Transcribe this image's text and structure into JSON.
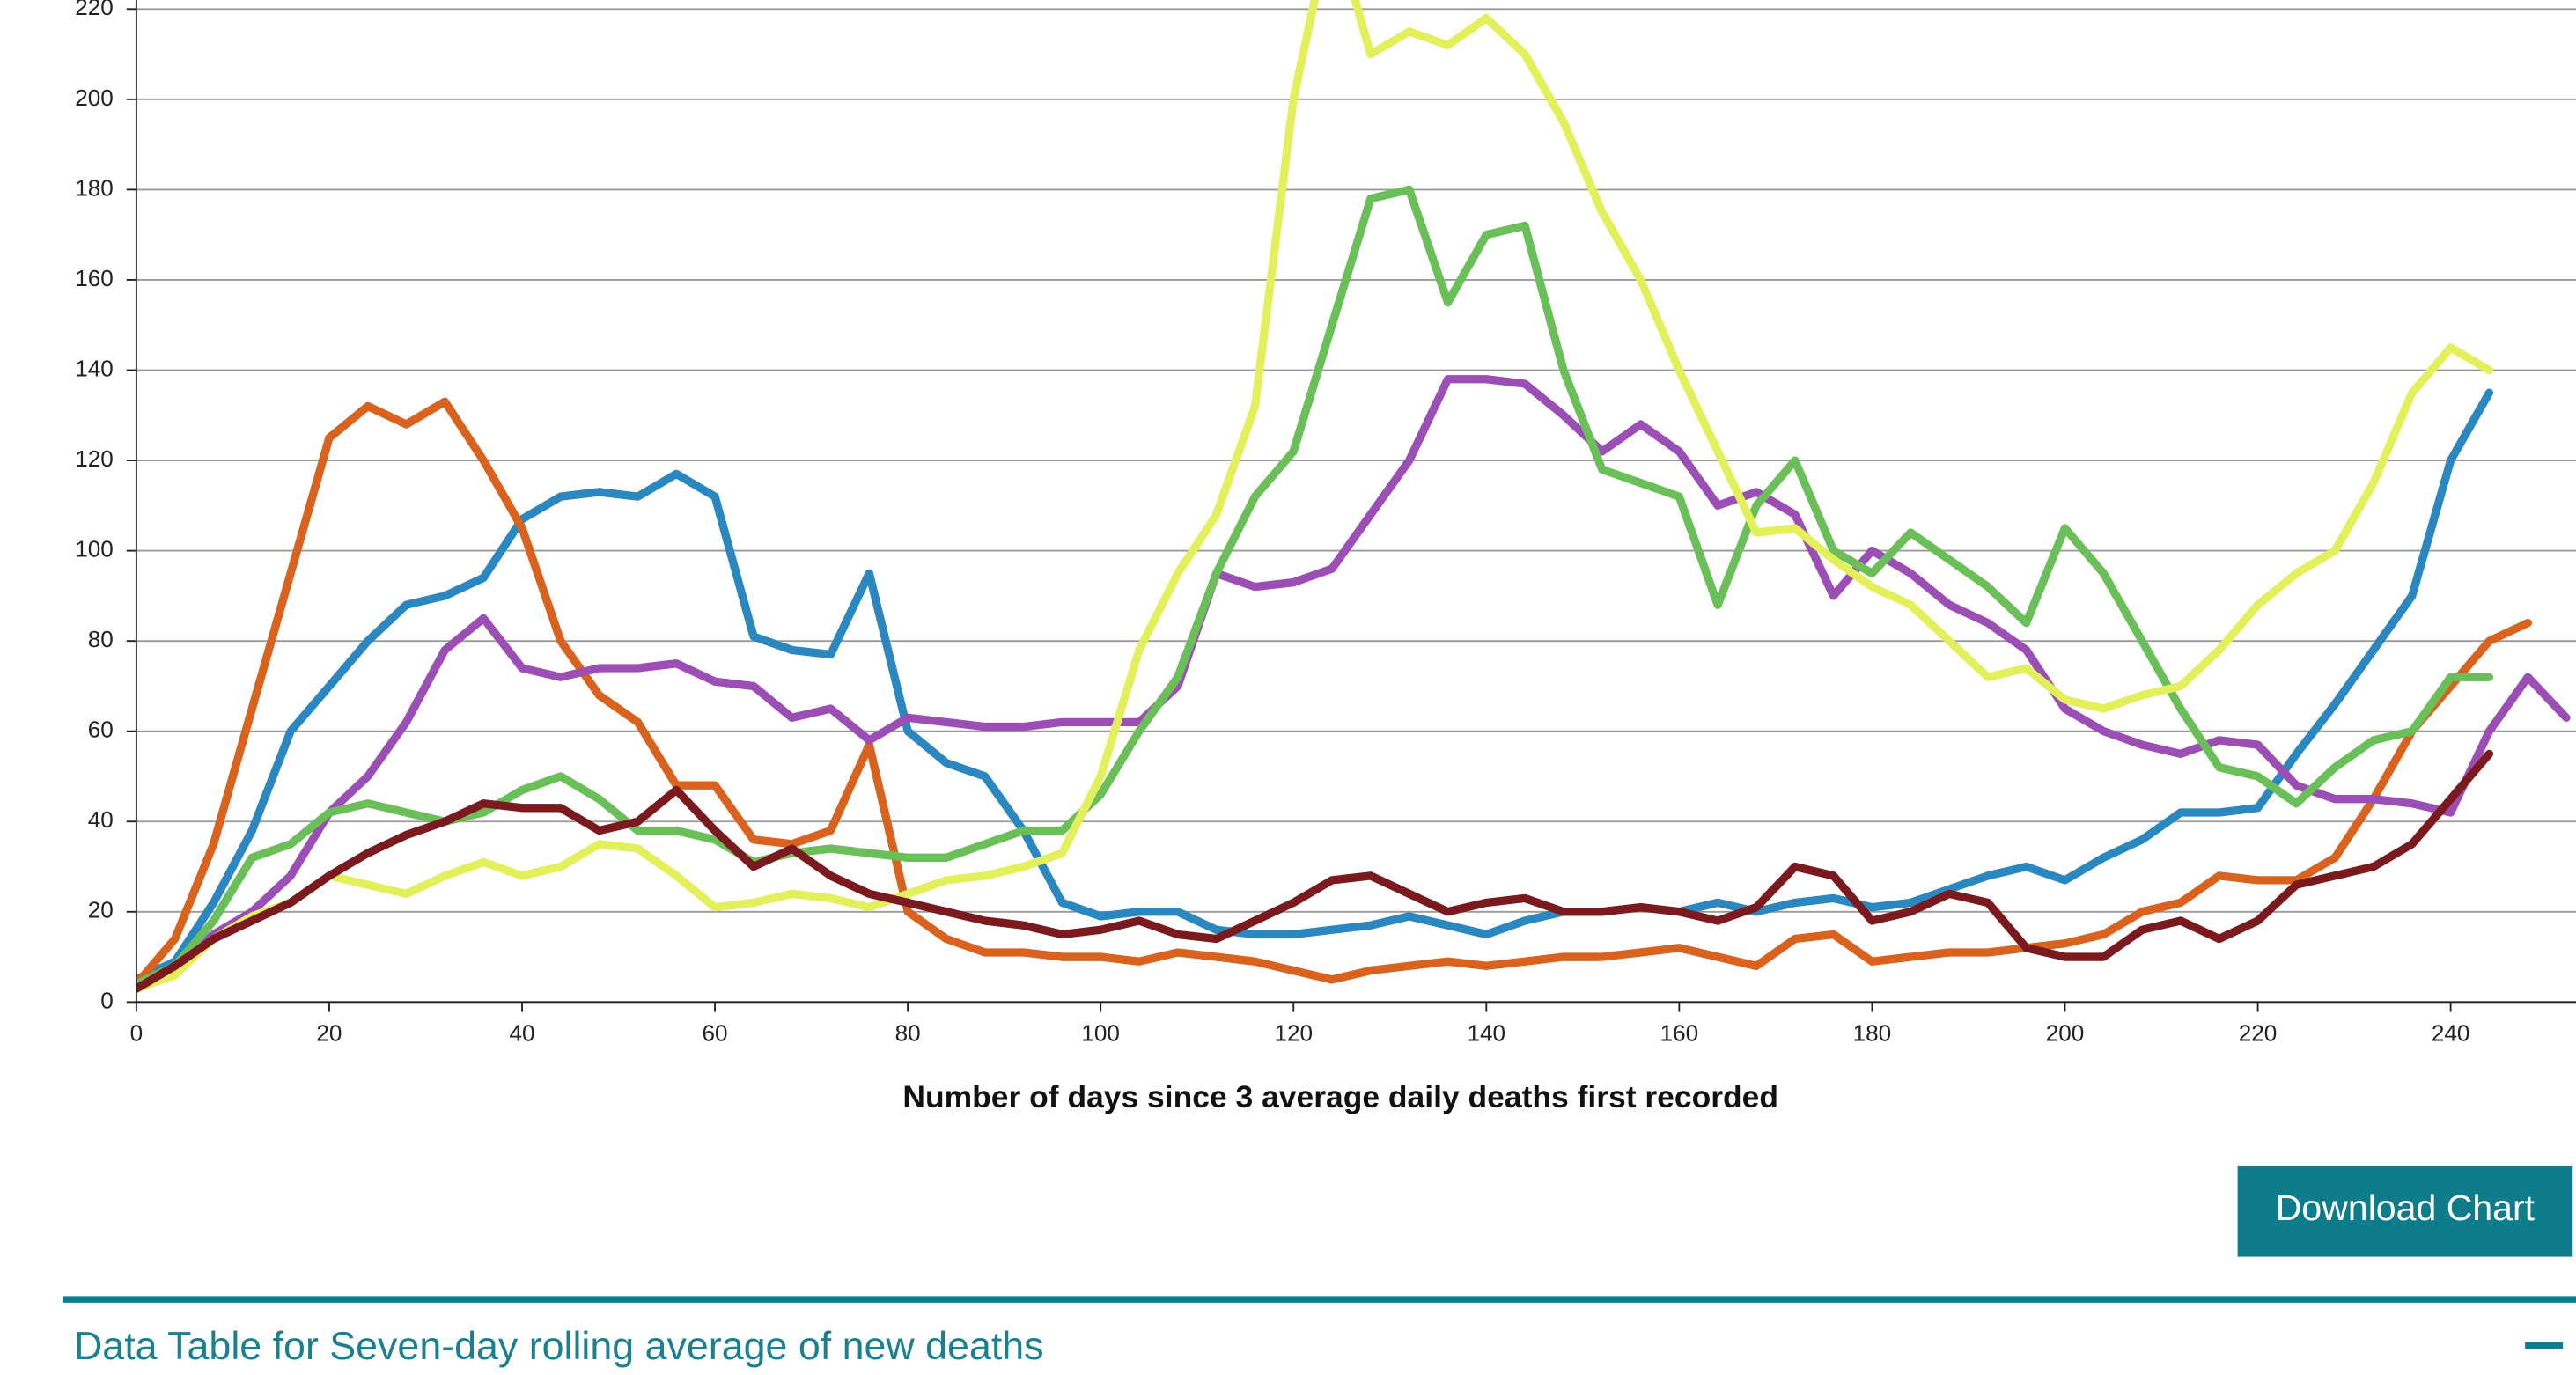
{
  "chart_data": {
    "type": "line",
    "x_label": "Number of days since 3 average daily deaths first recorded",
    "x": [
      0,
      4,
      8,
      12,
      16,
      20,
      24,
      28,
      32,
      36,
      40,
      44,
      48,
      52,
      56,
      60,
      64,
      68,
      72,
      76,
      80,
      84,
      88,
      92,
      96,
      100,
      104,
      108,
      112,
      116,
      120,
      124,
      128,
      132,
      136,
      140,
      144,
      148,
      152,
      156,
      160,
      164,
      168,
      172,
      176,
      180,
      184,
      188,
      192,
      196,
      200,
      204,
      208,
      212,
      216,
      220,
      224,
      228,
      232,
      236,
      240,
      244,
      248,
      252
    ],
    "xlim": [
      0,
      253
    ],
    "xticks": [
      0,
      20,
      40,
      60,
      80,
      100,
      120,
      140,
      160,
      180,
      200,
      220,
      240
    ],
    "ylim": [
      0,
      222
    ],
    "yticks": [
      0,
      20,
      40,
      60,
      80,
      100,
      120,
      140,
      160,
      180,
      200,
      220
    ],
    "grid": true,
    "series": [
      {
        "color": "#2a87c0",
        "values": [
          5,
          9,
          22,
          38,
          60,
          70,
          80,
          88,
          90,
          94,
          107,
          112,
          113,
          112,
          117,
          112,
          81,
          78,
          77,
          95,
          60,
          53,
          50,
          38,
          22,
          19,
          20,
          20,
          16,
          15,
          15,
          16,
          17,
          19,
          17,
          15,
          18,
          20,
          20,
          21,
          20,
          22,
          20,
          22,
          23,
          21,
          22,
          25,
          28,
          30,
          27,
          32,
          36,
          42,
          42,
          43,
          55,
          66,
          78,
          90,
          120,
          135,
          null,
          null
        ]
      },
      {
        "color": "#d9621e",
        "values": [
          4,
          14,
          35,
          65,
          95,
          125,
          132,
          128,
          133,
          120,
          105,
          80,
          68,
          62,
          48,
          48,
          36,
          35,
          38,
          57,
          20,
          14,
          11,
          11,
          10,
          10,
          9,
          11,
          10,
          9,
          7,
          5,
          7,
          8,
          9,
          8,
          9,
          10,
          10,
          11,
          12,
          10,
          8,
          14,
          15,
          9,
          10,
          11,
          11,
          12,
          13,
          15,
          20,
          22,
          28,
          27,
          27,
          32,
          45,
          60,
          70,
          80,
          84,
          null
        ]
      },
      {
        "color": "#9b4fb5",
        "values": [
          4,
          8,
          15,
          20,
          28,
          42,
          50,
          62,
          78,
          85,
          74,
          72,
          74,
          74,
          75,
          71,
          70,
          63,
          65,
          58,
          63,
          62,
          61,
          61,
          62,
          62,
          62,
          70,
          95,
          92,
          93,
          96,
          108,
          120,
          138,
          138,
          137,
          130,
          122,
          128,
          122,
          110,
          113,
          108,
          90,
          100,
          95,
          88,
          84,
          78,
          65,
          60,
          57,
          55,
          58,
          57,
          48,
          45,
          45,
          44,
          42,
          60,
          72,
          63
        ]
      },
      {
        "color": "#6bbf59",
        "values": [
          4,
          8,
          18,
          32,
          35,
          42,
          44,
          42,
          40,
          42,
          47,
          50,
          45,
          38,
          38,
          36,
          31,
          33,
          34,
          33,
          32,
          32,
          35,
          38,
          38,
          46,
          60,
          72,
          95,
          112,
          122,
          150,
          178,
          180,
          155,
          170,
          172,
          140,
          118,
          115,
          112,
          88,
          110,
          120,
          100,
          95,
          104,
          98,
          92,
          84,
          105,
          95,
          80,
          65,
          52,
          50,
          44,
          52,
          58,
          60,
          72,
          72,
          null,
          null
        ]
      },
      {
        "color": "#e3ef5b",
        "values": [
          3,
          6,
          14,
          19,
          22,
          28,
          26,
          24,
          28,
          31,
          28,
          30,
          35,
          34,
          28,
          21,
          22,
          24,
          23,
          21,
          24,
          27,
          28,
          30,
          33,
          50,
          78,
          95,
          108,
          132,
          200,
          240,
          210,
          215,
          212,
          218,
          210,
          195,
          175,
          160,
          140,
          122,
          104,
          105,
          98,
          92,
          88,
          80,
          72,
          74,
          67,
          65,
          68,
          70,
          78,
          88,
          95,
          100,
          115,
          135,
          145,
          140,
          null,
          null
        ]
      },
      {
        "color": "#7a1a1f",
        "values": [
          3,
          8,
          14,
          18,
          22,
          28,
          33,
          37,
          40,
          44,
          43,
          43,
          38,
          40,
          47,
          38,
          30,
          34,
          28,
          24,
          22,
          20,
          18,
          17,
          15,
          16,
          18,
          15,
          14,
          18,
          22,
          27,
          28,
          24,
          20,
          22,
          23,
          20,
          20,
          21,
          20,
          18,
          21,
          30,
          28,
          18,
          20,
          24,
          22,
          12,
          10,
          10,
          16,
          18,
          14,
          18,
          26,
          28,
          30,
          35,
          45,
          55,
          null,
          null
        ]
      }
    ]
  },
  "download_button": "Download Chart",
  "data_table": {
    "title": "Data Table for Seven-day rolling average of new deaths"
  }
}
